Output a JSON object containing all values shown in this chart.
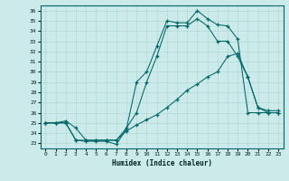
{
  "xlabel": "Humidex (Indice chaleur)",
  "bg_color": "#cceaea",
  "line_color": "#006666",
  "grid_color": "#b0d8d8",
  "xlim": [
    -0.5,
    23.5
  ],
  "ylim": [
    22.5,
    36.5
  ],
  "xticks": [
    0,
    1,
    2,
    3,
    4,
    5,
    6,
    7,
    8,
    9,
    10,
    11,
    12,
    13,
    14,
    15,
    16,
    17,
    18,
    19,
    20,
    21,
    22,
    23
  ],
  "yticks": [
    23,
    24,
    25,
    26,
    27,
    28,
    29,
    30,
    31,
    32,
    33,
    34,
    35,
    36
  ],
  "line1_x": [
    0,
    1,
    2,
    3,
    4,
    5,
    6,
    7,
    8,
    9,
    10,
    11,
    12,
    13,
    14,
    15,
    16,
    17,
    18,
    19,
    20,
    21,
    22,
    23
  ],
  "line1_y": [
    25.0,
    25.0,
    25.0,
    23.3,
    23.2,
    23.2,
    23.2,
    22.9,
    24.4,
    29.0,
    30.0,
    32.5,
    35.0,
    34.8,
    34.8,
    36.0,
    35.2,
    34.6,
    34.5,
    33.2,
    26.0,
    26.0,
    26.0,
    26.0
  ],
  "line2_x": [
    0,
    1,
    2,
    3,
    4,
    5,
    6,
    7,
    8,
    9,
    10,
    11,
    12,
    13,
    14,
    15,
    16,
    17,
    18,
    19,
    20,
    21,
    22,
    23
  ],
  "line2_y": [
    25.0,
    25.0,
    25.0,
    23.3,
    23.3,
    23.3,
    23.3,
    23.3,
    24.5,
    26.0,
    29.0,
    31.5,
    34.5,
    34.5,
    34.5,
    35.2,
    34.5,
    33.0,
    33.0,
    31.5,
    29.5,
    26.5,
    26.0,
    26.0
  ],
  "line3_x": [
    0,
    1,
    2,
    3,
    4,
    5,
    6,
    7,
    8,
    9,
    10,
    11,
    12,
    13,
    14,
    15,
    16,
    17,
    18,
    19,
    20,
    21,
    22,
    23
  ],
  "line3_y": [
    25.0,
    25.0,
    25.2,
    24.5,
    23.3,
    23.3,
    23.3,
    23.3,
    24.2,
    24.8,
    25.3,
    25.8,
    26.5,
    27.3,
    28.2,
    28.8,
    29.5,
    30.0,
    31.5,
    31.8,
    29.5,
    26.5,
    26.2,
    26.2
  ]
}
